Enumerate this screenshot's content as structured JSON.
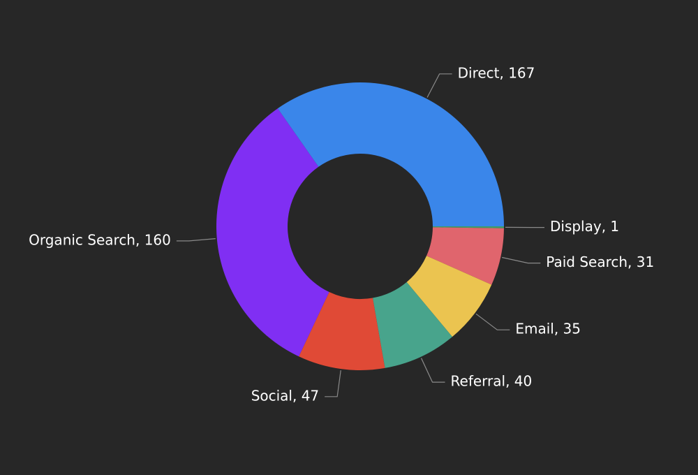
{
  "chart_data": {
    "type": "pie",
    "variant": "donut",
    "title": "",
    "legend": "none",
    "start_angle_deg": 0,
    "direction": "clockwise",
    "slices": [
      {
        "name": "Display",
        "value": 1,
        "label": "Display, 1",
        "color": "#3e9b6a"
      },
      {
        "name": "Paid Search",
        "value": 31,
        "label": "Paid Search, 31",
        "color": "#e0656d"
      },
      {
        "name": "Email",
        "value": 35,
        "label": "Email, 35",
        "color": "#ebc450"
      },
      {
        "name": "Referral",
        "value": 40,
        "label": "Referral, 40",
        "color": "#48a48c"
      },
      {
        "name": "Social",
        "value": 47,
        "label": "Social, 47",
        "color": "#e04a36"
      },
      {
        "name": "Organic Search",
        "value": 160,
        "label": "Organic Search, 160",
        "color": "#802ff3"
      },
      {
        "name": "Direct",
        "value": 167,
        "label": "Direct, 167",
        "color": "#3a86ea"
      }
    ]
  }
}
